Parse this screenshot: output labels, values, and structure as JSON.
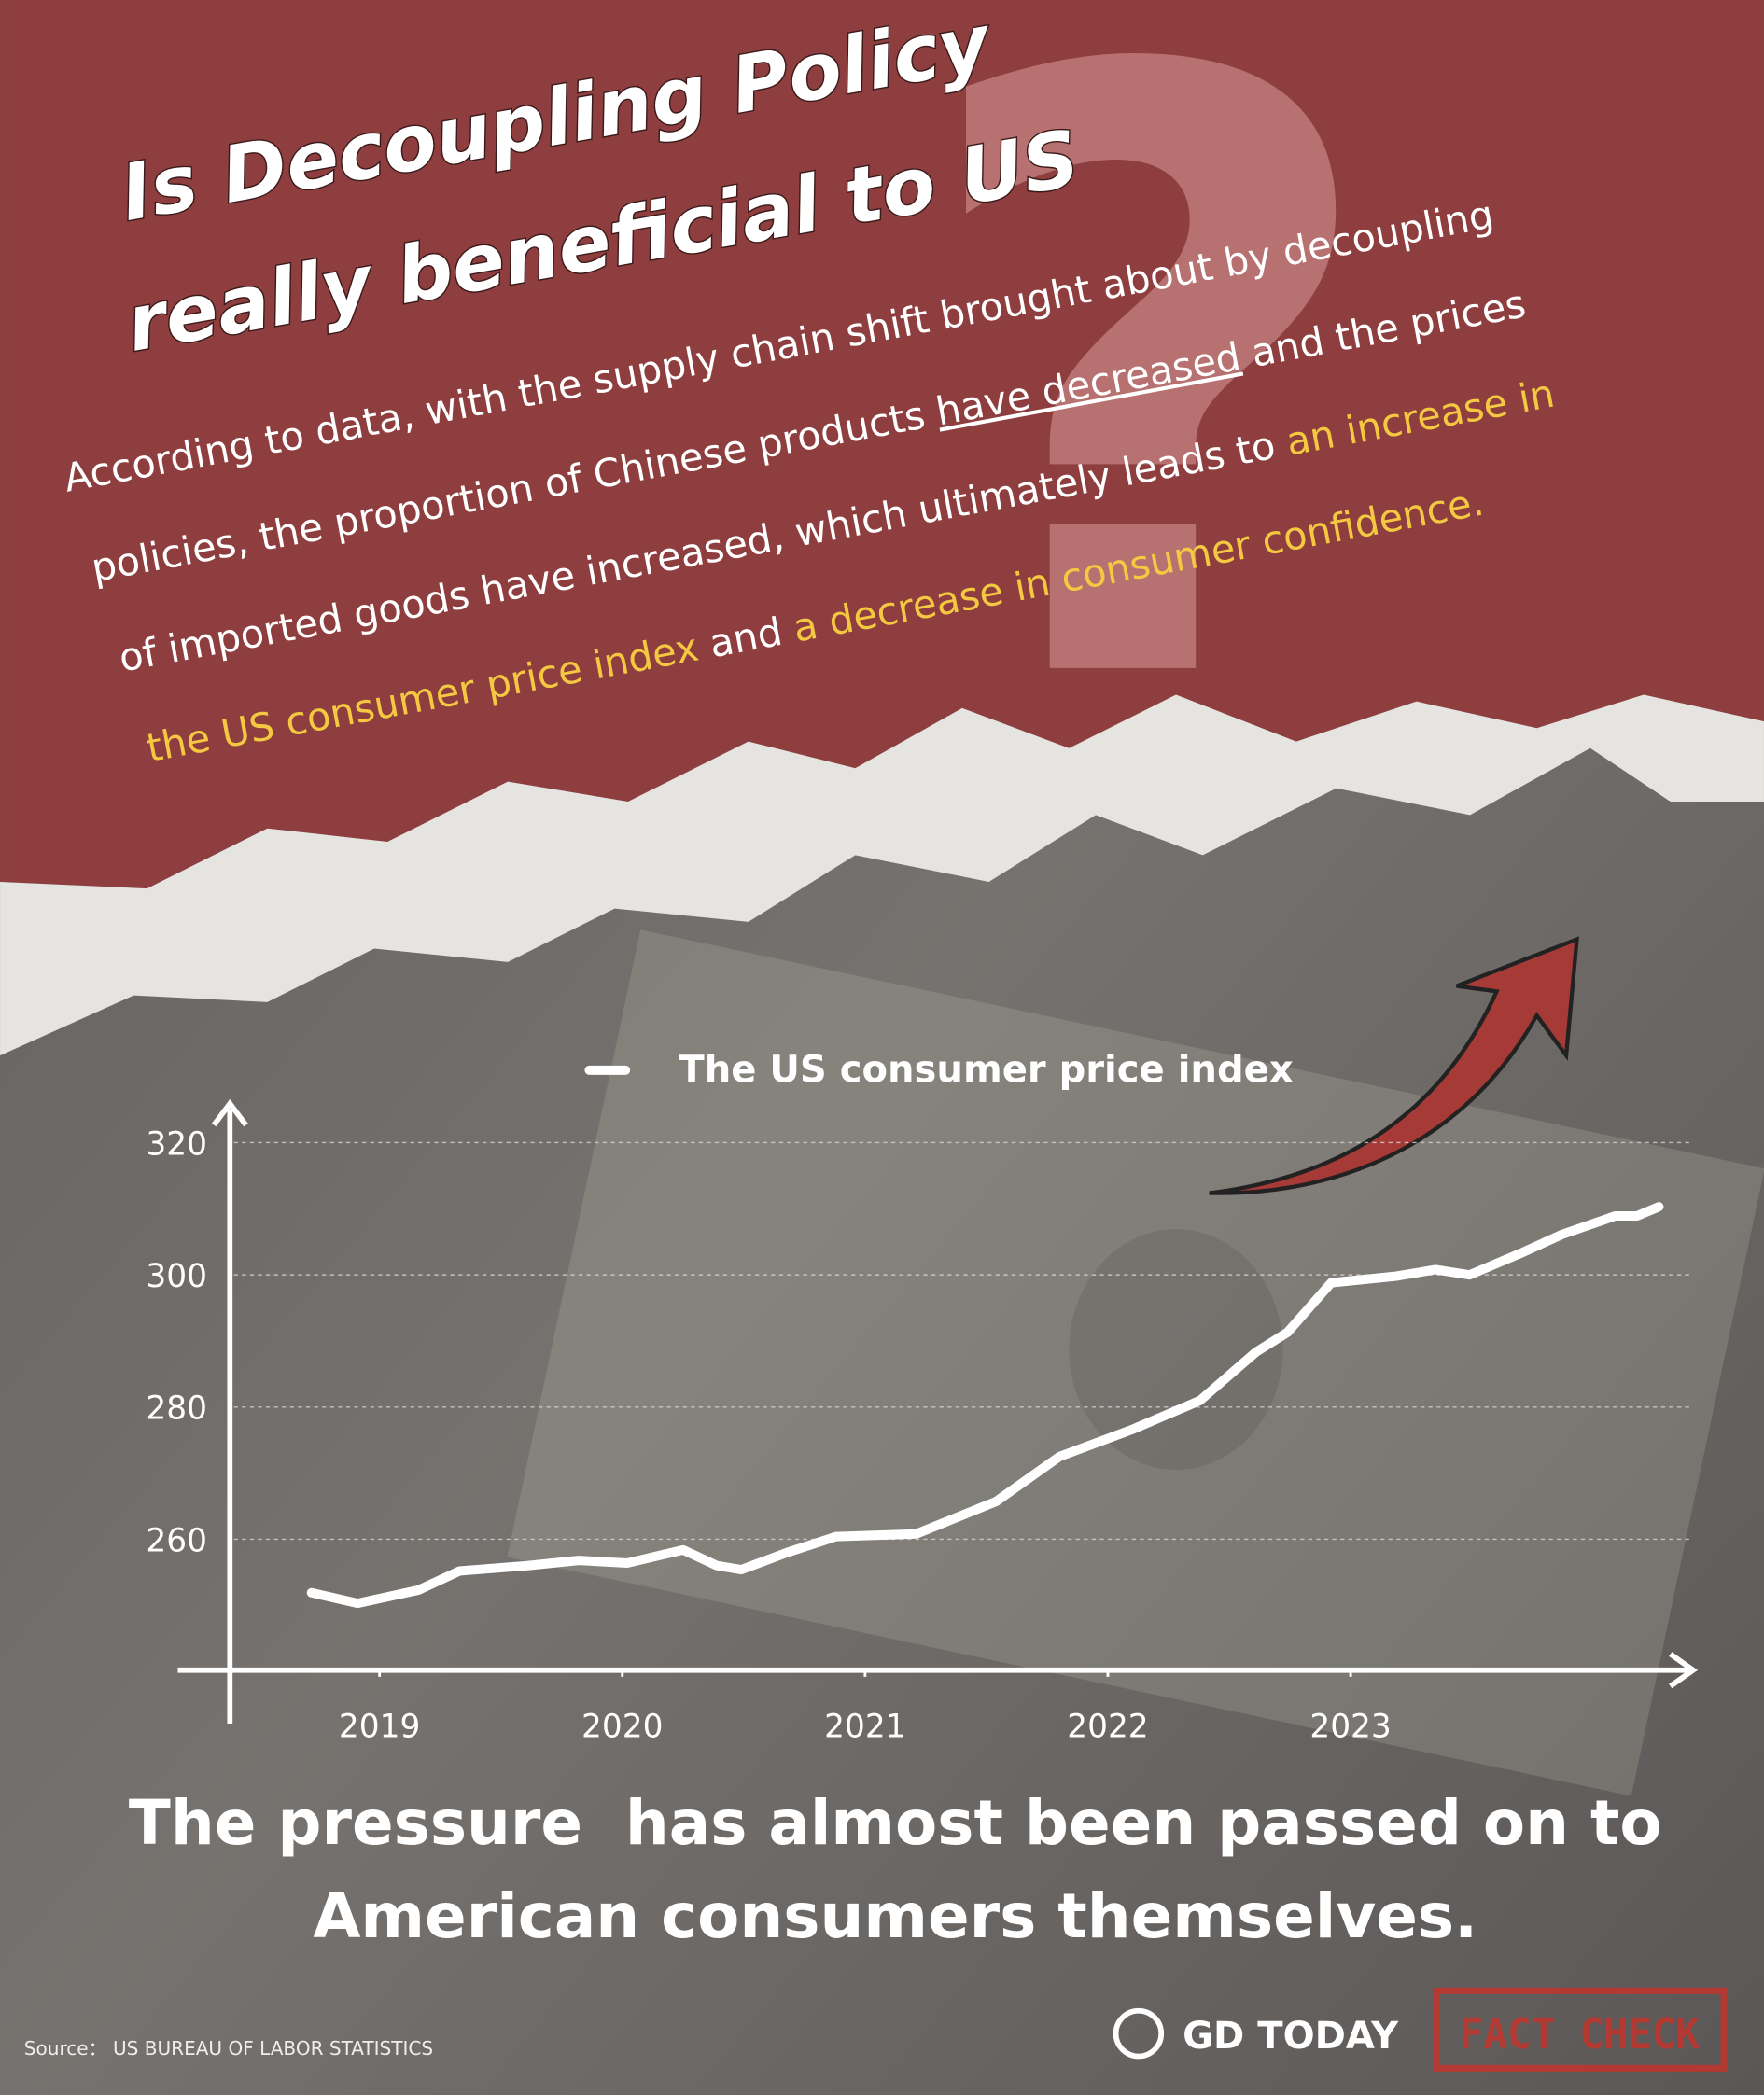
{
  "header": {
    "title": [
      "Is Decoupling Policy",
      "really beneficial to US"
    ],
    "intro": [
      [
        {
          "text": "According to data, with the supply chain shift brought about by decoupling",
          "style": "plain"
        }
      ],
      [
        {
          "text": "policies, the proportion of Chinese products ",
          "style": "plain"
        },
        {
          "text": "have decreased",
          "style": "underline"
        },
        {
          "text": " and the prices",
          "style": "plain"
        }
      ],
      [
        {
          "text": "of imported goods have increased, which ultimately leads to ",
          "style": "plain"
        },
        {
          "text": "an increase in",
          "style": "highlight"
        }
      ],
      [
        {
          "text": "the US consumer price index",
          "style": "highlight"
        },
        {
          "text": " and ",
          "style": "plain"
        },
        {
          "text": "a decrease in consumer confidence.",
          "style": "highlight"
        }
      ]
    ]
  },
  "chart_data": {
    "type": "line",
    "x": [
      2018.72,
      2018.91,
      2019.16,
      2019.33,
      2019.61,
      2019.82,
      2020.02,
      2020.25,
      2020.39,
      2020.49,
      2020.68,
      2020.88,
      2021.21,
      2021.54,
      2021.8,
      2022.1,
      2022.38,
      2022.61,
      2022.74,
      2022.92,
      2023.19,
      2023.35,
      2023.49,
      2023.71,
      2023.87,
      2024.09,
      2024.18,
      2024.27
    ],
    "series": [
      {
        "name": "The US consumer price index",
        "color": "#ffffff",
        "values": [
          251.9,
          250.3,
          252.3,
          255.2,
          256.0,
          256.8,
          256.4,
          258.4,
          256.0,
          255.4,
          258.0,
          260.4,
          260.8,
          265.7,
          272.5,
          276.6,
          281.0,
          288.3,
          291.3,
          298.8,
          299.8,
          300.8,
          300.0,
          303.4,
          306.1,
          308.9,
          308.9,
          310.3
        ]
      }
    ],
    "xlim": [
      2018.4,
      2024.4
    ],
    "xticks": [
      2019,
      2020,
      2021,
      2022,
      2023
    ],
    "ylim": [
      240.2,
      325.5
    ],
    "yticks": [
      260,
      280,
      300,
      320
    ],
    "grid": true
  },
  "conclusion": [
    "The pressure  has almost been passed on to",
    "American consumers themselves."
  ],
  "source": "Source： US BUREAU OF LABOR STATISTICS",
  "brand": "GD TODAY",
  "stamp": "FACT CHECK"
}
